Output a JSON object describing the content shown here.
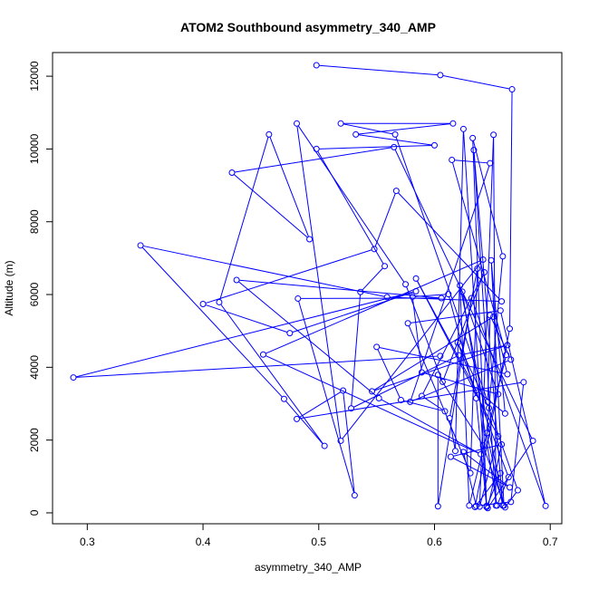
{
  "chart_data": {
    "type": "line",
    "title": "ATOM2 Southbound asymmetry_340_AMP",
    "xlabel": "asymmetry_340_AMP",
    "ylabel": "Altitude (m)",
    "xlim": [
      0.27,
      0.71
    ],
    "ylim": [
      -300,
      12650
    ],
    "xticks": [
      0.3,
      0.4,
      0.5,
      0.6,
      0.7
    ],
    "yticks": [
      0,
      2000,
      4000,
      6000,
      8000,
      10000,
      12000
    ],
    "xtick_labels": [
      "0.3",
      "0.4",
      "0.5",
      "0.6",
      "0.7"
    ],
    "ytick_labels": [
      "0",
      "2000",
      "4000",
      "6000",
      "8000",
      "10000",
      "12000"
    ],
    "grid": false,
    "series": [
      {
        "marker": "open-circle",
        "color": "#0000ff",
        "points": [
          [
            0.498,
            12300
          ],
          [
            0.605,
            12030
          ],
          [
            0.667,
            11640
          ],
          [
            0.665,
            5060
          ],
          [
            0.635,
            160
          ],
          [
            0.657,
            1090
          ],
          [
            0.645,
            160
          ],
          [
            0.636,
            3150
          ],
          [
            0.612,
            6010
          ],
          [
            0.581,
            5940
          ],
          [
            0.589,
            3860
          ],
          [
            0.655,
            3260
          ],
          [
            0.624,
            6080
          ],
          [
            0.654,
            200
          ],
          [
            0.664,
            980
          ],
          [
            0.62,
            4680
          ],
          [
            0.647,
            2880
          ],
          [
            0.672,
            620
          ],
          [
            0.661,
            150
          ],
          [
            0.642,
            1850
          ],
          [
            0.603,
            3790
          ],
          [
            0.603,
            180
          ],
          [
            0.632,
            5900
          ],
          [
            0.696,
            190
          ],
          [
            0.657,
            5560
          ],
          [
            0.577,
            5210
          ],
          [
            0.631,
            1090
          ],
          [
            0.637,
            6710
          ],
          [
            0.613,
            2600
          ],
          [
            0.618,
            1700
          ],
          [
            0.625,
            10550
          ],
          [
            0.645,
            190
          ],
          [
            0.633,
            10300
          ],
          [
            0.659,
            7050
          ],
          [
            0.645,
            2190
          ],
          [
            0.659,
            200
          ],
          [
            0.634,
            9970
          ],
          [
            0.653,
            200
          ],
          [
            0.651,
            10390
          ],
          [
            0.639,
            170
          ],
          [
            0.655,
            2100
          ],
          [
            0.584,
            6440
          ],
          [
            0.636,
            3370
          ],
          [
            0.661,
            2730
          ],
          [
            0.649,
            6940
          ],
          [
            0.66,
            200
          ],
          [
            0.622,
            6250
          ],
          [
            0.63,
            200
          ],
          [
            0.662,
            4340
          ],
          [
            0.615,
            9700
          ],
          [
            0.648,
            9610
          ],
          [
            0.579,
            3050
          ],
          [
            0.666,
            4210
          ],
          [
            0.648,
            5430
          ],
          [
            0.646,
            3050
          ],
          [
            0.566,
            10400
          ],
          [
            0.519,
            10700
          ],
          [
            0.616,
            10700
          ],
          [
            0.532,
            10400
          ],
          [
            0.6,
            10100
          ],
          [
            0.498,
            10000
          ],
          [
            0.557,
            6780
          ],
          [
            0.536,
            6070
          ],
          [
            0.528,
            2870
          ],
          [
            0.621,
            4330
          ],
          [
            0.663,
            4610
          ],
          [
            0.546,
            3340
          ],
          [
            0.651,
            5390
          ],
          [
            0.663,
            3810
          ],
          [
            0.55,
            4560
          ],
          [
            0.571,
            3100
          ],
          [
            0.609,
            2790
          ],
          [
            0.589,
            3210
          ],
          [
            0.643,
            6610
          ],
          [
            0.607,
            3600
          ],
          [
            0.575,
            6280
          ],
          [
            0.481,
            10700
          ],
          [
            0.519,
            1980
          ],
          [
            0.642,
            6960
          ],
          [
            0.452,
            4350
          ],
          [
            0.64,
            1610
          ],
          [
            0.552,
            3150
          ],
          [
            0.429,
            6400
          ],
          [
            0.606,
            5900
          ],
          [
            0.482,
            5890
          ],
          [
            0.531,
            480
          ],
          [
            0.521,
            3360
          ],
          [
            0.481,
            2580
          ],
          [
            0.677,
            3590
          ],
          [
            0.666,
            300
          ],
          [
            0.636,
            190
          ],
          [
            0.625,
            1670
          ],
          [
            0.665,
            700
          ],
          [
            0.614,
            1540
          ],
          [
            0.658,
            1880
          ],
          [
            0.646,
            130
          ],
          [
            0.685,
            1980
          ],
          [
            0.565,
            10050
          ],
          [
            0.425,
            9350
          ],
          [
            0.492,
            7520
          ],
          [
            0.457,
            10400
          ],
          [
            0.414,
            5790
          ],
          [
            0.505,
            1840
          ],
          [
            0.47,
            3130
          ],
          [
            0.346,
            7350
          ],
          [
            0.559,
            5930
          ],
          [
            0.658,
            5810
          ],
          [
            0.567,
            8850
          ],
          [
            0.548,
            7250
          ],
          [
            0.4,
            5740
          ],
          [
            0.475,
            4940
          ],
          [
            0.584,
            6090
          ],
          [
            0.288,
            3720
          ],
          [
            0.605,
            4310
          ]
        ]
      }
    ]
  }
}
